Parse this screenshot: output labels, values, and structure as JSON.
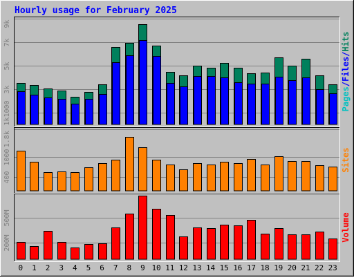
{
  "title": "Hourly usage for February 2025",
  "colors": {
    "background": "#c0c0c0",
    "hits": "#00805c",
    "files": "#0000ff",
    "pages": "#00c0c0",
    "sites": "#ff8000",
    "volume": "#ff0000",
    "title": "#0000ff"
  },
  "chart_data": [
    {
      "type": "bar",
      "name": "hits-files-pages",
      "categories": [
        "0",
        "1",
        "2",
        "3",
        "4",
        "5",
        "6",
        "7",
        "8",
        "9",
        "10",
        "11",
        "12",
        "13",
        "14",
        "15",
        "16",
        "17",
        "18",
        "19",
        "20",
        "21",
        "22",
        "23"
      ],
      "series": [
        {
          "name": "Hits",
          "values": [
            3550,
            3380,
            3080,
            2880,
            2380,
            2780,
            3430,
            6580,
            6930,
            8530,
            6690,
            4500,
            4180,
            4980,
            4830,
            5230,
            4800,
            4380,
            4430,
            5680,
            4980,
            5560,
            4200,
            3430
          ]
        },
        {
          "name": "Files",
          "values": [
            2800,
            2550,
            2300,
            2150,
            1750,
            2150,
            2600,
            5300,
            5900,
            7200,
            5850,
            3550,
            3250,
            4100,
            4100,
            4000,
            3600,
            3450,
            3500,
            4050,
            3750,
            4000,
            3000,
            2650
          ]
        },
        {
          "name": "Pages",
          "values": [
            0,
            0,
            0,
            0,
            0,
            0,
            0,
            0,
            0,
            0,
            0,
            0,
            0,
            0,
            0,
            0,
            0,
            0,
            0,
            0,
            0,
            0,
            0,
            0
          ]
        }
      ],
      "y_tick_labels": [
        "1k1000",
        "3k",
        "5k",
        "7k",
        "9k"
      ],
      "y_ticks": [
        1000,
        3000,
        5000,
        7000,
        9000
      ],
      "ylim": [
        0,
        9000
      ],
      "side_label": [
        "Pages",
        "/",
        "Files",
        "/",
        "Hits"
      ],
      "grid": true
    },
    {
      "type": "bar",
      "name": "sites",
      "categories": [
        "0",
        "1",
        "2",
        "3",
        "4",
        "5",
        "6",
        "7",
        "8",
        "9",
        "10",
        "11",
        "12",
        "13",
        "14",
        "15",
        "16",
        "17",
        "18",
        "19",
        "20",
        "21",
        "22",
        "23"
      ],
      "series": [
        {
          "name": "Sites",
          "values": [
            1180,
            856,
            547,
            567,
            547,
            693,
            815,
            919,
            1587,
            1270,
            918,
            770,
            636,
            810,
            772,
            855,
            810,
            940,
            773,
            1012,
            878,
            878,
            747,
            710
          ]
        }
      ],
      "y_tick_labels": [
        "400",
        "1000",
        "1.8k"
      ],
      "y_ticks": [
        400,
        1000,
        1800
      ],
      "ylim": [
        0,
        1800
      ],
      "side_label": [
        "Sites"
      ],
      "grid": true
    },
    {
      "type": "bar",
      "name": "volume",
      "categories": [
        "0",
        "1",
        "2",
        "3",
        "4",
        "5",
        "6",
        "7",
        "8",
        "9",
        "10",
        "11",
        "12",
        "13",
        "14",
        "15",
        "16",
        "17",
        "18",
        "19",
        "20",
        "21",
        "22",
        "23"
      ],
      "series": [
        {
          "name": "Volume",
          "values": [
            205,
            158,
            338,
            205,
            143,
            180,
            190,
            380,
            548,
            765,
            605,
            535,
            278,
            383,
            373,
            415,
            408,
            478,
            308,
            378,
            303,
            303,
            332,
            248
          ]
        }
      ],
      "y_tick_labels": [
        "200M",
        "500M"
      ],
      "y_ticks": [
        200,
        500
      ],
      "ylim": [
        0,
        765
      ],
      "side_label": [
        "Volume"
      ],
      "grid": true
    }
  ]
}
